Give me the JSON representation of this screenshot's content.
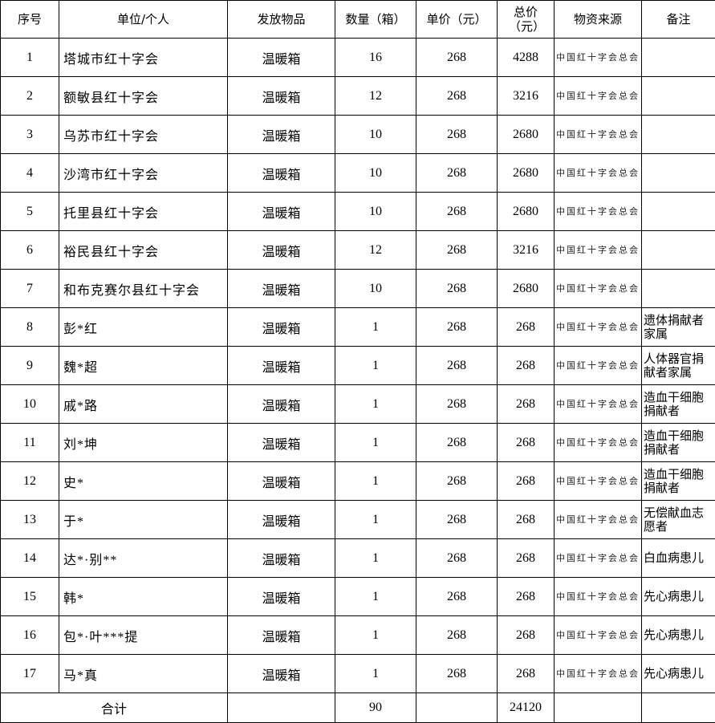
{
  "headers": [
    "序号",
    "单位/个人",
    "发放物品",
    "数量（箱）",
    "单价（元）",
    "总价（元）",
    "物资来源",
    "备注"
  ],
  "rows": [
    {
      "no": "1",
      "name": "塔城市红十字会",
      "item": "温暖箱",
      "qty": "16",
      "price": "268",
      "total": "4288",
      "source": "中国红十字会总会",
      "note": ""
    },
    {
      "no": "2",
      "name": "额敏县红十字会",
      "item": "温暖箱",
      "qty": "12",
      "price": "268",
      "total": "3216",
      "source": "中国红十字会总会",
      "note": ""
    },
    {
      "no": "3",
      "name": "乌苏市红十字会",
      "item": "温暖箱",
      "qty": "10",
      "price": "268",
      "total": "2680",
      "source": "中国红十字会总会",
      "note": ""
    },
    {
      "no": "4",
      "name": "沙湾市红十字会",
      "item": "温暖箱",
      "qty": "10",
      "price": "268",
      "total": "2680",
      "source": "中国红十字会总会",
      "note": ""
    },
    {
      "no": "5",
      "name": "托里县红十字会",
      "item": "温暖箱",
      "qty": "10",
      "price": "268",
      "total": "2680",
      "source": "中国红十字会总会",
      "note": ""
    },
    {
      "no": "6",
      "name": "裕民县红十字会",
      "item": "温暖箱",
      "qty": "12",
      "price": "268",
      "total": "3216",
      "source": "中国红十字会总会",
      "note": ""
    },
    {
      "no": "7",
      "name": "和布克赛尔县红十字会",
      "item": "温暖箱",
      "qty": "10",
      "price": "268",
      "total": "2680",
      "source": "中国红十字会总会",
      "note": ""
    },
    {
      "no": "8",
      "name": "彭*红",
      "item": "温暖箱",
      "qty": "1",
      "price": "268",
      "total": "268",
      "source": "中国红十字会总会",
      "note": "遗体捐献者家属"
    },
    {
      "no": "9",
      "name": "魏*超",
      "item": "温暖箱",
      "qty": "1",
      "price": "268",
      "total": "268",
      "source": "中国红十字会总会",
      "note": "人体器官捐献者家属"
    },
    {
      "no": "10",
      "name": "戚*路",
      "item": "温暖箱",
      "qty": "1",
      "price": "268",
      "total": "268",
      "source": "中国红十字会总会",
      "note": "造血干细胞捐献者"
    },
    {
      "no": "11",
      "name": "刘*坤",
      "item": "温暖箱",
      "qty": "1",
      "price": "268",
      "total": "268",
      "source": "中国红十字会总会",
      "note": "造血干细胞捐献者"
    },
    {
      "no": "12",
      "name": "史*",
      "item": "温暖箱",
      "qty": "1",
      "price": "268",
      "total": "268",
      "source": "中国红十字会总会",
      "note": "造血干细胞捐献者"
    },
    {
      "no": "13",
      "name": "于*",
      "item": "温暖箱",
      "qty": "1",
      "price": "268",
      "total": "268",
      "source": "中国红十字会总会",
      "note": "无偿献血志愿者"
    },
    {
      "no": "14",
      "name": "达*·别**",
      "item": "温暖箱",
      "qty": "1",
      "price": "268",
      "total": "268",
      "source": "中国红十字会总会",
      "note": "白血病患儿"
    },
    {
      "no": "15",
      "name": "韩*",
      "item": "温暖箱",
      "qty": "1",
      "price": "268",
      "total": "268",
      "source": "中国红十字会总会",
      "note": "先心病患儿"
    },
    {
      "no": "16",
      "name": "包*·叶***提",
      "item": "温暖箱",
      "qty": "1",
      "price": "268",
      "total": "268",
      "source": "中国红十字会总会",
      "note": "先心病患儿"
    },
    {
      "no": "17",
      "name": "马*真",
      "item": "温暖箱",
      "qty": "1",
      "price": "268",
      "total": "268",
      "source": "中国红十字会总会",
      "note": "先心病患儿"
    }
  ],
  "footer": {
    "label": "合计",
    "qty": "90",
    "total": "24120"
  }
}
